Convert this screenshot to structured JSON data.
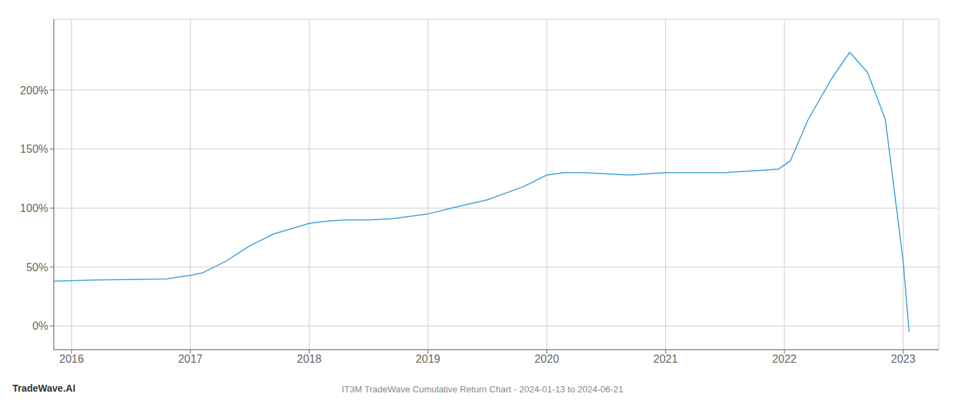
{
  "chart_data": {
    "type": "line",
    "title": "IT3M TradeWave Cumulative Return Chart - 2024-01-13 to 2024-06-21",
    "annotations": [
      "TradeWave.AI"
    ],
    "x": [
      2015.85,
      2016.0,
      2016.2,
      2016.5,
      2016.8,
      2017.0,
      2017.1,
      2017.3,
      2017.5,
      2017.7,
      2018.0,
      2018.15,
      2018.3,
      2018.5,
      2018.7,
      2019.0,
      2019.2,
      2019.5,
      2019.8,
      2020.0,
      2020.15,
      2020.3,
      2020.5,
      2020.7,
      2021.0,
      2021.2,
      2021.5,
      2021.8,
      2021.95,
      2022.05,
      2022.2,
      2022.4,
      2022.55,
      2022.7,
      2022.85,
      2023.0,
      2023.05
    ],
    "values": [
      38,
      38.5,
      39,
      39.5,
      40,
      43,
      45,
      55,
      68,
      78,
      87,
      89,
      90,
      90,
      91,
      95,
      100,
      107,
      118,
      128,
      130,
      130,
      129,
      128,
      130,
      130,
      130,
      132,
      133,
      140,
      175,
      210,
      232,
      215,
      175,
      55,
      -5
    ],
    "color": "#3a9fd8",
    "xlim": [
      2015.85,
      2023.3
    ],
    "ylim": [
      -20,
      260
    ],
    "xticks": [
      2016,
      2017,
      2018,
      2019,
      2020,
      2021,
      2022,
      2023
    ],
    "yticks": [
      {
        "value": 0,
        "label": "0%"
      },
      {
        "value": 50,
        "label": "50%"
      },
      {
        "value": 100,
        "label": "100%"
      },
      {
        "value": 150,
        "label": "150%"
      },
      {
        "value": 200,
        "label": "200%"
      }
    ],
    "grid": true
  }
}
